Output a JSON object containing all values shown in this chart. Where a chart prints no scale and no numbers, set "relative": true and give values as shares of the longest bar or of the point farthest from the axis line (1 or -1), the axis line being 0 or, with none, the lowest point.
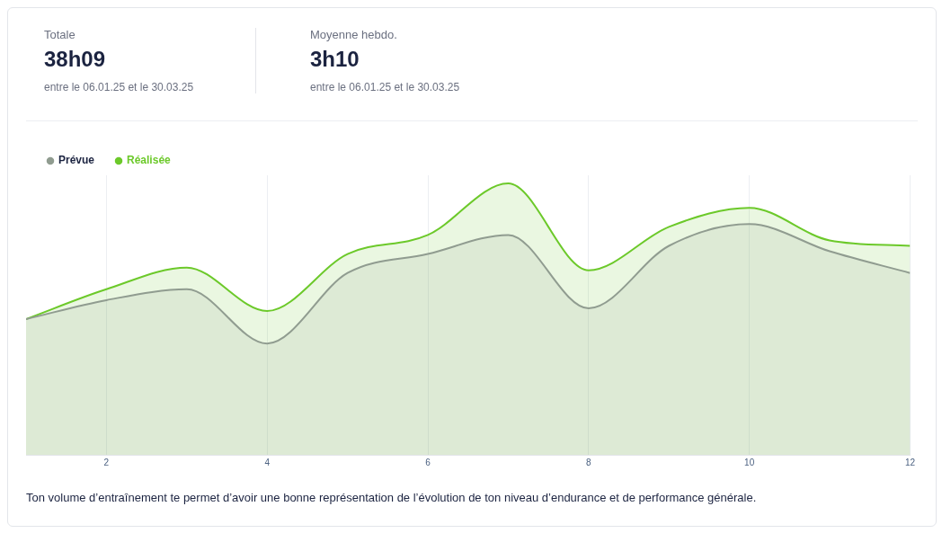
{
  "chart_data": [
    {
      "type": "other",
      "annotations": [
        "Totale",
        "38h09",
        "entre le 06.01.25 et le 30.03.25",
        "Moyenne hebdo.",
        "3h10",
        "entre le 06.01.25 et le 30.03.25"
      ]
    },
    {
      "type": "area",
      "x": [
        1,
        2,
        3,
        4,
        5,
        6,
        7,
        8,
        9,
        10,
        11,
        12
      ],
      "relative": true,
      "xlim": [
        1,
        12
      ],
      "xticks": [
        2,
        4,
        6,
        8,
        10,
        12
      ],
      "grid": "x",
      "legend": "top left",
      "marker": "none",
      "series": [
        {
          "name": "Prévue",
          "color": "#909c90",
          "values": [
            0.5,
            0.57,
            0.61,
            0.41,
            0.67,
            0.74,
            0.81,
            0.54,
            0.77,
            0.85,
            0.75,
            0.67
          ]
        },
        {
          "name": "Réalisée",
          "color": "#6cc92a",
          "values": [
            0.5,
            0.61,
            0.69,
            0.53,
            0.74,
            0.81,
            1,
            0.68,
            0.84,
            0.91,
            0.79,
            0.77
          ]
        }
      ],
      "annotations": [
        "Ton volume d’entraînement te permet d’avoir une bonne représentation de l’évolution de ton niveau d’endurance et de performance générale."
      ]
    }
  ]
}
